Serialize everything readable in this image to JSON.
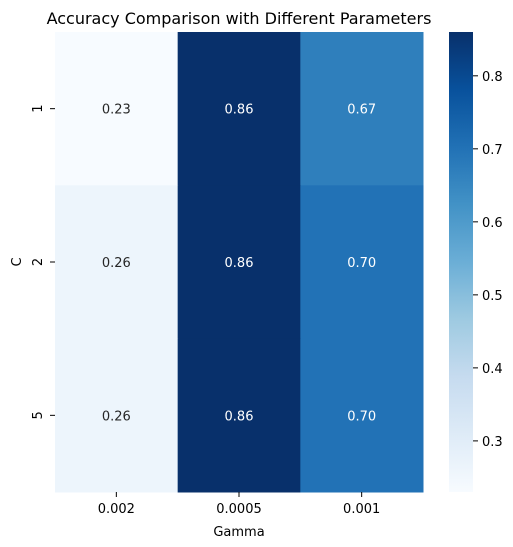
{
  "chart_data": {
    "type": "heatmap",
    "title": "Accuracy Comparison with Different Parameters",
    "xlabel": "Gamma",
    "ylabel": "C",
    "x_categories": [
      "0.002",
      "0.0005",
      "0.001"
    ],
    "y_categories": [
      "1",
      "2",
      "5"
    ],
    "values": [
      [
        0.23,
        0.86,
        0.67
      ],
      [
        0.26,
        0.86,
        0.7
      ],
      [
        0.26,
        0.86,
        0.7
      ]
    ],
    "value_labels": [
      [
        "0.23",
        "0.86",
        "0.67"
      ],
      [
        "0.26",
        "0.86",
        "0.70"
      ],
      [
        "0.26",
        "0.86",
        "0.70"
      ]
    ],
    "colormap": "Blues",
    "color_range": [
      0.23,
      0.86
    ],
    "colorbar": {
      "ticks": [
        0.3,
        0.4,
        0.5,
        0.6,
        0.7,
        0.8
      ],
      "tick_labels": [
        "0.3",
        "0.4",
        "0.5",
        "0.6",
        "0.7",
        "0.8"
      ]
    }
  }
}
